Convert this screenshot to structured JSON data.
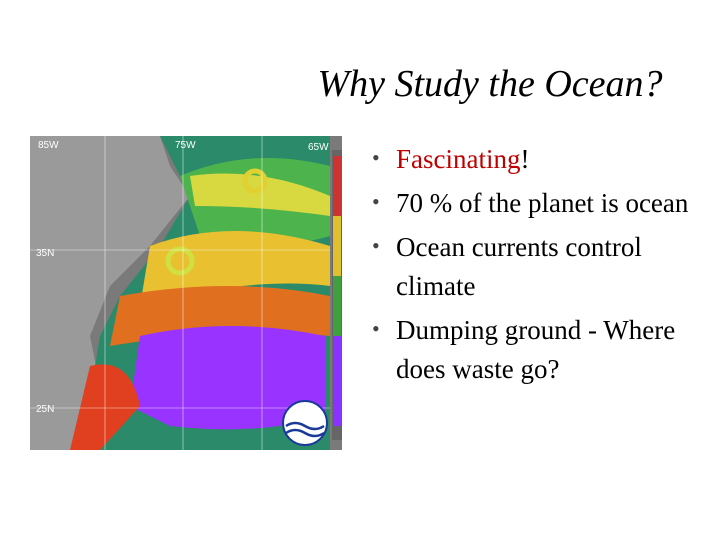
{
  "title": "Why Study the Ocean?",
  "map": {
    "labels": [
      "85W",
      "75W",
      "65W",
      "35N",
      "25N"
    ]
  },
  "bullets": [
    {
      "text": "Fascinating",
      "suffix": "!"
    },
    {
      "text": "70 % of the planet is ocean"
    },
    {
      "text": "Ocean currents control climate"
    },
    {
      "text": "Dumping ground - Where does waste go?"
    }
  ]
}
